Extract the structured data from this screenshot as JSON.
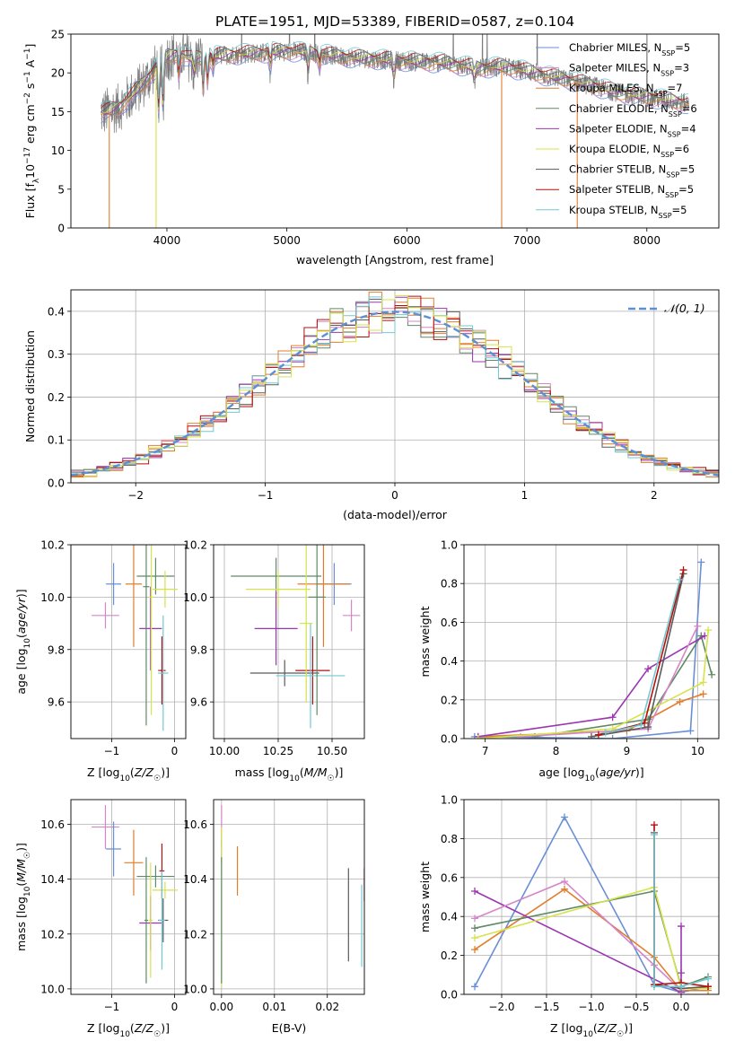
{
  "title": "PLATE=1951, MJD=53389, FIBERID=0587, z=0.104",
  "colors": [
    "#6a8fd6",
    "#e07e2e",
    "#5e8a66",
    "#9b36b1",
    "#d686c8",
    "#e07e2e",
    "#5a5a5a",
    "#b31010",
    "#72c9d2",
    "#d6e34a"
  ],
  "series_names": [
    "Chabrier MILES, N_SSP=5",
    "Salpeter MILES, N_SSP=3",
    "Kroupa MILES, N_SSP=7",
    "Chabrier ELODIE, N_SSP=6",
    "Salpeter ELODIE, N_SSP=4",
    "Kroupa ELODIE, N_SSP=6",
    "Chabrier STELIB, N_SSP=5",
    "Salpeter STELIB, N_SSP=5",
    "Kroupa STELIB, N_SSP=5"
  ],
  "chart_data": [
    {
      "type": "line",
      "id": "spectrum",
      "title": "PLATE=1951, MJD=53389, FIBERID=0587, z=0.104",
      "xlabel": "wavelength [Angstrom, rest frame]",
      "ylabel": "Flux [f_λ 10^-17 erg cm^-2 s^-1 A^-1]",
      "xlim": [
        3200,
        8600
      ],
      "ylim": [
        0,
        25
      ],
      "xticks": [
        "4000",
        "5000",
        "6000",
        "7000",
        "8000"
      ],
      "yticks": [
        "0",
        "5",
        "10",
        "15",
        "20",
        "25"
      ],
      "legend": "upper right",
      "series": [
        {
          "name": "Chabrier MILES, N_SSP=5",
          "color": "#6a8fd6"
        },
        {
          "name": "Salpeter MILES, N_SSP=3",
          "color": "#d686c8"
        },
        {
          "name": "Kroupa MILES, N_SSP=7",
          "color": "#e07e2e"
        },
        {
          "name": "Chabrier ELODIE, N_SSP=6",
          "color": "#5e8a66"
        },
        {
          "name": "Salpeter ELODIE, N_SSP=4",
          "color": "#9b36b1"
        },
        {
          "name": "Kroupa ELODIE, N_SSP=6",
          "color": "#d6e34a"
        },
        {
          "name": "Chabrier STELIB, N_SSP=5",
          "color": "#5a5a5a"
        },
        {
          "name": "Salpeter STELIB, N_SSP=5",
          "color": "#b31010"
        },
        {
          "name": "Kroupa STELIB, N_SSP=5",
          "color": "#72c9d2"
        }
      ],
      "continuum": {
        "x": [
          3450,
          3600,
          3700,
          3800,
          3900,
          4000,
          4100,
          4200,
          4300,
          4500,
          4700,
          5000,
          5200,
          5500,
          5800,
          6000,
          6300,
          6600,
          6800,
          7000,
          7200,
          7400,
          7600,
          7800,
          8000,
          8200,
          8350
        ],
        "y": [
          14.8,
          15.5,
          17.0,
          18.5,
          20.5,
          22.0,
          22.5,
          21.8,
          22.0,
          22.3,
          22.5,
          22.8,
          22.6,
          22.0,
          21.7,
          21.5,
          21.3,
          20.6,
          20.8,
          20.2,
          19.5,
          18.9,
          18.1,
          17.3,
          16.9,
          16.4,
          16.0
        ]
      },
      "drop_edges": [
        {
          "x": 3520,
          "color": "#e07e2e"
        },
        {
          "x": 3910,
          "color": "#d6e34a"
        },
        {
          "x": 6790,
          "color": "#e07e2e"
        },
        {
          "x": 7420,
          "color": "#e07e2e"
        }
      ]
    },
    {
      "type": "line",
      "id": "residuals",
      "xlabel": "(data-model)/error",
      "ylabel": "Normed distribution",
      "xlim": [
        -2.5,
        2.5
      ],
      "ylim": [
        0,
        0.45
      ],
      "xticks": [
        "−2",
        "−1",
        "0",
        "1",
        "2"
      ],
      "yticks": [
        "0.0",
        "0.1",
        "0.2",
        "0.3",
        "0.4"
      ],
      "grid": true,
      "legend": "upper right",
      "reference": {
        "name": "𝒩(0, 1)",
        "color": "#5b8fd6",
        "mean": 0,
        "sigma": 1
      }
    },
    {
      "type": "scatter",
      "id": "age-vs-Z",
      "xlabel": "Z [log10(Z/Z☉)]",
      "ylabel": "age [log10(age/yr)]",
      "xlim": [
        -1.65,
        0.18
      ],
      "ylim": [
        9.46,
        10.2
      ],
      "xticks": [
        "−1",
        "0"
      ],
      "yticks": [
        "9.6",
        "9.8",
        "10.0",
        "10.2"
      ],
      "grid": true,
      "points": [
        {
          "x": -0.97,
          "y": 10.05,
          "xerr": 0.12,
          "yerr": 0.08,
          "color": "#6a8fd6"
        },
        {
          "x": -0.65,
          "y": 10.05,
          "xerr": 0.13,
          "yerr": 0.24,
          "color": "#e07e2e"
        },
        {
          "x": -1.1,
          "y": 9.93,
          "xerr": 0.22,
          "yerr": 0.05,
          "color": "#d686c8"
        },
        {
          "x": -0.3,
          "y": 10.08,
          "xerr": 0.3,
          "yerr": 0.07,
          "color": "#5e8a66"
        },
        {
          "x": -0.15,
          "y": 10.03,
          "xerr": 0.2,
          "yerr": 0.07,
          "color": "#d6e34a"
        },
        {
          "x": -0.38,
          "y": 9.88,
          "xerr": 0.18,
          "yerr": 0.16,
          "color": "#9b36b1"
        },
        {
          "x": -0.2,
          "y": 9.72,
          "xerr": 0.06,
          "yerr": 0.13,
          "color": "#b31010"
        },
        {
          "x": -0.18,
          "y": 9.71,
          "xerr": 0.08,
          "yerr": 0.22,
          "color": "#72c9d2"
        },
        {
          "x": -0.45,
          "y": 10.04,
          "xerr": 0.05,
          "yerr": 0.53,
          "color": "#5e8a66"
        },
        {
          "x": -0.37,
          "y": 10.0,
          "xerr": 0.04,
          "yerr": 0.45,
          "color": "#d6e34a"
        }
      ]
    },
    {
      "type": "scatter",
      "id": "age-vs-mass",
      "xlabel": "mass [log10(M/M☉)]",
      "xlim": [
        9.95,
        10.65
      ],
      "ylim": [
        9.46,
        10.2
      ],
      "xticks": [
        "10.00",
        "10.25",
        "10.50"
      ],
      "yticks": [
        "9.6",
        "9.8",
        "10.0",
        "10.2"
      ],
      "grid": true,
      "points": [
        {
          "x": 10.51,
          "y": 10.05,
          "xerr": 0.08,
          "yerr": 0.08,
          "color": "#6a8fd6"
        },
        {
          "x": 10.46,
          "y": 10.05,
          "xerr": 0.12,
          "yerr": 0.24,
          "color": "#e07e2e"
        },
        {
          "x": 10.59,
          "y": 9.93,
          "xerr": 0.04,
          "yerr": 0.06,
          "color": "#d686c8"
        },
        {
          "x": 10.24,
          "y": 10.08,
          "xerr": 0.21,
          "yerr": 0.07,
          "color": "#5e8a66"
        },
        {
          "x": 10.25,
          "y": 10.03,
          "xerr": 0.15,
          "yerr": 0.07,
          "color": "#d6e34a"
        },
        {
          "x": 10.24,
          "y": 9.88,
          "xerr": 0.1,
          "yerr": 0.14,
          "color": "#9b36b1"
        },
        {
          "x": 10.41,
          "y": 9.72,
          "xerr": 0.08,
          "yerr": 0.13,
          "color": "#b31010"
        },
        {
          "x": 10.28,
          "y": 9.71,
          "xerr": 0.16,
          "yerr": 0.05,
          "color": "#5a5a5a"
        },
        {
          "x": 10.4,
          "y": 9.7,
          "xerr": 0.16,
          "yerr": 0.2,
          "color": "#72c9d2"
        },
        {
          "x": 10.43,
          "y": 10.0,
          "xerr": 0.04,
          "yerr": 0.45,
          "color": "#5e8a66"
        },
        {
          "x": 10.38,
          "y": 9.9,
          "xerr": 0.03,
          "yerr": 0.3,
          "color": "#d6e34a"
        }
      ]
    },
    {
      "type": "line",
      "id": "mass-weight-vs-age",
      "xlabel": "age [log10(age/yr)]",
      "ylabel": "mass weight",
      "xlim": [
        6.7,
        10.3
      ],
      "ylim": [
        0,
        1.0
      ],
      "xticks": [
        "7",
        "8",
        "9",
        "10"
      ],
      "yticks": [
        "0.0",
        "0.2",
        "0.4",
        "0.6",
        "0.8",
        "1.0"
      ],
      "grid": true,
      "series": [
        {
          "color": "#6a8fd6",
          "x": [
            6.85,
            8.8,
            9.9,
            10.05
          ],
          "y": [
            0.01,
            0.0,
            0.04,
            0.91
          ]
        },
        {
          "color": "#e07e2e",
          "x": [
            6.9,
            9.0,
            9.75,
            10.08
          ],
          "y": [
            0.01,
            0.04,
            0.19,
            0.23
          ]
        },
        {
          "color": "#5e8a66",
          "x": [
            7.7,
            9.3,
            10.05,
            10.2
          ],
          "y": [
            0.01,
            0.1,
            0.53,
            0.33
          ]
        },
        {
          "color": "#9b36b1",
          "x": [
            6.9,
            8.8,
            9.3,
            10.1
          ],
          "y": [
            0.01,
            0.11,
            0.36,
            0.53
          ]
        },
        {
          "color": "#d686c8",
          "x": [
            7.5,
            9.3,
            10.0
          ],
          "y": [
            0.01,
            0.05,
            0.58
          ]
        },
        {
          "color": "#d6e34a",
          "x": [
            6.9,
            8.8,
            10.08,
            10.15
          ],
          "y": [
            0.0,
            0.05,
            0.29,
            0.56
          ]
        },
        {
          "color": "#5a5a5a",
          "x": [
            8.5,
            9.3,
            9.8
          ],
          "y": [
            0.01,
            0.06,
            0.85
          ]
        },
        {
          "color": "#b31010",
          "x": [
            8.6,
            9.25,
            9.8
          ],
          "y": [
            0.02,
            0.08,
            0.87
          ]
        },
        {
          "color": "#72c9d2",
          "x": [
            8.7,
            9.2,
            9.75
          ],
          "y": [
            0.03,
            0.07,
            0.82
          ]
        }
      ]
    },
    {
      "type": "scatter",
      "id": "mass-vs-Z",
      "xlabel": "Z [log10(Z/Z☉)]",
      "ylabel": "mass [log10(M/M☉)]",
      "xlim": [
        -1.65,
        0.18
      ],
      "ylim": [
        9.98,
        10.69
      ],
      "xticks": [
        "−1",
        "0"
      ],
      "yticks": [
        "10.0",
        "10.2",
        "10.4",
        "10.6"
      ],
      "grid": true,
      "points": [
        {
          "x": -1.1,
          "y": 10.59,
          "xerr": 0.22,
          "yerr": 0.08,
          "color": "#d686c8"
        },
        {
          "x": -0.97,
          "y": 10.51,
          "xerr": 0.12,
          "yerr": 0.1,
          "color": "#6a8fd6"
        },
        {
          "x": -0.65,
          "y": 10.46,
          "xerr": 0.15,
          "yerr": 0.12,
          "color": "#e07e2e"
        },
        {
          "x": -0.3,
          "y": 10.41,
          "xerr": 0.3,
          "yerr": 0.04,
          "color": "#5e8a66"
        },
        {
          "x": -0.15,
          "y": 10.36,
          "xerr": 0.2,
          "yerr": 0.03,
          "color": "#d6e34a"
        },
        {
          "x": -0.38,
          "y": 10.24,
          "xerr": 0.18,
          "yerr": 0.1,
          "color": "#9b36b1"
        },
        {
          "x": -0.2,
          "y": 10.43,
          "xerr": 0.04,
          "yerr": 0.1,
          "color": "#b31010"
        },
        {
          "x": -0.18,
          "y": 10.25,
          "xerr": 0.08,
          "yerr": 0.08,
          "color": "#5a5a5a"
        },
        {
          "x": -0.2,
          "y": 10.25,
          "xerr": 0.05,
          "yerr": 0.18,
          "color": "#72c9d2"
        },
        {
          "x": -0.45,
          "y": 10.25,
          "xerr": 0.03,
          "yerr": 0.23,
          "color": "#5e8a66"
        },
        {
          "x": -0.38,
          "y": 10.25,
          "xerr": 0.03,
          "yerr": 0.21,
          "color": "#d6e34a"
        }
      ]
    },
    {
      "type": "scatter",
      "id": "mass-vs-EBV",
      "xlabel": "E(B-V)",
      "xlim": [
        -0.0015,
        0.027
      ],
      "ylim": [
        9.98,
        10.69
      ],
      "xticks": [
        "0.00",
        "0.01",
        "0.02"
      ],
      "yticks": [
        "10.0",
        "10.2",
        "10.4",
        "10.6"
      ],
      "grid": true,
      "points": [
        {
          "x": 0.0,
          "y": 10.59,
          "yerr": 0.08,
          "color": "#d686c8"
        },
        {
          "x": 0.0,
          "y": 10.5,
          "yerr": 0.04,
          "color": "#6a8fd6"
        },
        {
          "x": 0.0,
          "y": 10.3,
          "yerr": 0.29,
          "color": "#d6e34a"
        },
        {
          "x": 0.0,
          "y": 10.25,
          "yerr": 0.23,
          "color": "#5e8a66"
        },
        {
          "x": 0.003,
          "y": 10.43,
          "yerr": 0.09,
          "color": "#e07e2e"
        },
        {
          "x": 0.024,
          "y": 10.27,
          "yerr": 0.17,
          "color": "#5a5a5a"
        },
        {
          "x": 0.027,
          "y": 10.38,
          "yerr": 0.06,
          "color": "#b31010"
        },
        {
          "x": 0.0265,
          "y": 10.23,
          "yerr": 0.15,
          "color": "#72c9d2"
        }
      ]
    },
    {
      "type": "line",
      "id": "mass-weight-vs-Z",
      "xlabel": "Z [log10(Z/Z☉)]",
      "ylabel": "mass weight",
      "xlim": [
        -2.42,
        0.42
      ],
      "ylim": [
        0,
        1.0
      ],
      "xticks": [
        "−2.0",
        "−1.5",
        "−1.0",
        "−0.5",
        "0.0"
      ],
      "yticks": [
        "0.0",
        "0.2",
        "0.4",
        "0.6",
        "0.8",
        "1.0"
      ],
      "grid": true,
      "series": [
        {
          "color": "#6a8fd6",
          "x": [
            -2.3,
            -1.3,
            -0.3,
            0.0,
            0.3
          ],
          "y": [
            0.04,
            0.91,
            0.05,
            0.01,
            0.04
          ]
        },
        {
          "color": "#e07e2e",
          "x": [
            -2.3,
            -1.3,
            -0.3,
            0.0,
            0.3
          ],
          "y": [
            0.23,
            0.54,
            0.19,
            0.02,
            0.02
          ]
        },
        {
          "color": "#5e8a66",
          "x": [
            -2.3,
            -0.3,
            0.0,
            0.3
          ],
          "y": [
            0.34,
            0.53,
            0.04,
            0.09
          ]
        },
        {
          "color": "#9b36b1",
          "x": [
            -2.3,
            0.0,
            0.0,
            0.0
          ],
          "y": [
            0.53,
            0.01,
            0.35,
            0.11
          ]
        },
        {
          "color": "#d686c8",
          "x": [
            -2.3,
            -1.3,
            -0.3,
            0.0
          ],
          "y": [
            0.39,
            0.58,
            0.15,
            0.02
          ]
        },
        {
          "color": "#d6e34a",
          "x": [
            -2.3,
            -0.3,
            0.0,
            0.3
          ],
          "y": [
            0.29,
            0.55,
            0.03,
            0.03
          ]
        },
        {
          "color": "#5a5a5a",
          "x": [
            -0.3,
            -0.3,
            0.0,
            0.3
          ],
          "y": [
            0.83,
            0.05,
            0.03,
            0.04
          ]
        },
        {
          "color": "#b31010",
          "x": [
            -0.3,
            -0.3,
            0.0,
            0.3
          ],
          "y": [
            0.87,
            0.05,
            0.06,
            0.04
          ]
        },
        {
          "color": "#72c9d2",
          "x": [
            -0.3,
            -0.3,
            0.0,
            0.3
          ],
          "y": [
            0.82,
            0.04,
            0.04,
            0.08
          ]
        }
      ]
    }
  ]
}
